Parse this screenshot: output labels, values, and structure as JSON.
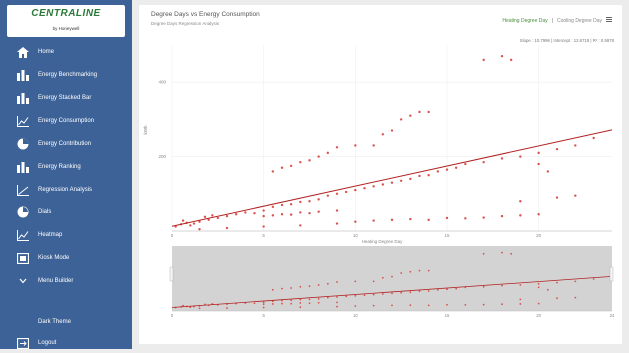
{
  "app": {
    "logo_text": "CENTRALINE",
    "logo_subtext": "by Honeywell"
  },
  "sidebar": {
    "items": [
      {
        "label": "Home",
        "icon": "home-icon"
      },
      {
        "label": "Energy Benchmarking",
        "icon": "bar-chart-icon"
      },
      {
        "label": "Energy Stacked Bar",
        "icon": "bar-chart-icon"
      },
      {
        "label": "Energy Consumption",
        "icon": "line-chart-icon"
      },
      {
        "label": "Energy Contribution",
        "icon": "pie-chart-icon"
      },
      {
        "label": "Energy Ranking",
        "icon": "bar-chart-icon"
      },
      {
        "label": "Regression Analysis",
        "icon": "regression-icon"
      },
      {
        "label": "Dials",
        "icon": "dial-icon"
      },
      {
        "label": "Heatmap",
        "icon": "line-chart-icon"
      },
      {
        "label": "Kiosk Mode",
        "icon": "kiosk-icon"
      },
      {
        "label": "Menu Builder",
        "icon": "chevron-down-icon"
      },
      {
        "label": "Dark Theme",
        "icon": ""
      },
      {
        "label": "Logout",
        "icon": "logout-icon"
      }
    ]
  },
  "header": {
    "title": "Degree Days vs Energy Consumption",
    "subtitle": "Degree Days Regression Analysis",
    "legend_heating": "Heating Degree Day",
    "legend_separator": "|",
    "legend_cooling": "Cooling Degree Day",
    "stats": "Slope : 10.7996 | Intercept : 12.6718 | R² : 0.5978"
  },
  "colors": {
    "sidebar_bg": "#3d6297",
    "points": "#d9534f",
    "trend_line": "#b22222",
    "navigator_bg": "#d3d3d3"
  },
  "chart_data": {
    "type": "scatter",
    "xlabel": "Heating Degree Day",
    "ylabel": "kWh",
    "xlim": [
      0,
      24
    ],
    "ylim": [
      0,
      500
    ],
    "x_ticks": [
      "0",
      "5",
      "10",
      "15",
      "20"
    ],
    "y_ticks": [
      "200",
      "400"
    ],
    "navigator_x_ticks": [
      "0",
      "5",
      "10",
      "15",
      "20",
      "24"
    ],
    "series": [
      {
        "name": "Heating Degree Day",
        "trend": {
          "slope": 10.7996,
          "intercept": 12.6718
        },
        "points": [
          [
            0.2,
            12
          ],
          [
            0.5,
            18
          ],
          [
            0.8,
            22
          ],
          [
            1.2,
            20
          ],
          [
            1.5,
            25
          ],
          [
            2.0,
            30
          ],
          [
            2.2,
            42
          ],
          [
            1.8,
            38
          ],
          [
            0.6,
            28
          ],
          [
            1.0,
            15
          ],
          [
            2.5,
            35
          ],
          [
            3.0,
            40
          ],
          [
            3.5,
            45
          ],
          [
            4.0,
            50
          ],
          [
            4.5,
            48
          ],
          [
            5.0,
            55
          ],
          [
            5.5,
            65
          ],
          [
            6.0,
            70
          ],
          [
            6.5,
            72
          ],
          [
            7.0,
            78
          ],
          [
            7.5,
            80
          ],
          [
            8.0,
            85
          ],
          [
            8.5,
            95
          ],
          [
            9.0,
            100
          ],
          [
            9.5,
            105
          ],
          [
            10.0,
            110
          ],
          [
            10.5,
            115
          ],
          [
            11.0,
            120
          ],
          [
            11.5,
            125
          ],
          [
            12.0,
            130
          ],
          [
            12.5,
            135
          ],
          [
            13.0,
            140
          ],
          [
            13.5,
            148
          ],
          [
            14.0,
            150
          ],
          [
            14.5,
            160
          ],
          [
            15.0,
            165
          ],
          [
            15.5,
            170
          ],
          [
            16.0,
            180
          ],
          [
            17.0,
            185
          ],
          [
            18.0,
            195
          ],
          [
            19.0,
            200
          ],
          [
            20.0,
            210
          ],
          [
            21.0,
            220
          ],
          [
            22.0,
            230
          ],
          [
            23.0,
            250
          ],
          [
            1.5,
            5
          ],
          [
            3.0,
            8
          ],
          [
            5.0,
            12
          ],
          [
            7.0,
            15
          ],
          [
            9.0,
            20
          ],
          [
            10.0,
            25
          ],
          [
            11.0,
            28
          ],
          [
            12.0,
            30
          ],
          [
            13.0,
            32
          ],
          [
            14.0,
            30
          ],
          [
            15.0,
            35
          ],
          [
            16.0,
            34
          ],
          [
            17.0,
            36
          ],
          [
            18.0,
            40
          ],
          [
            19.0,
            42
          ],
          [
            20.0,
            45
          ],
          [
            5.0,
            40
          ],
          [
            5.5,
            42
          ],
          [
            6.0,
            45
          ],
          [
            6.5,
            44
          ],
          [
            7.0,
            50
          ],
          [
            7.5,
            48
          ],
          [
            8.0,
            52
          ],
          [
            9.0,
            55
          ],
          [
            5.5,
            160
          ],
          [
            6.0,
            170
          ],
          [
            6.5,
            175
          ],
          [
            7.0,
            185
          ],
          [
            7.5,
            190
          ],
          [
            8.0,
            200
          ],
          [
            8.5,
            210
          ],
          [
            9.0,
            225
          ],
          [
            10.0,
            230
          ],
          [
            11.0,
            230
          ],
          [
            11.5,
            260
          ],
          [
            12.0,
            270
          ],
          [
            12.5,
            300
          ],
          [
            13.0,
            310
          ],
          [
            13.5,
            320
          ],
          [
            14.0,
            320
          ],
          [
            17.0,
            460
          ],
          [
            18.0,
            470
          ],
          [
            18.5,
            460
          ],
          [
            20.0,
            180
          ],
          [
            19.0,
            80
          ],
          [
            21.0,
            90
          ],
          [
            22.0,
            95
          ],
          [
            20.5,
            160
          ]
        ]
      }
    ]
  }
}
